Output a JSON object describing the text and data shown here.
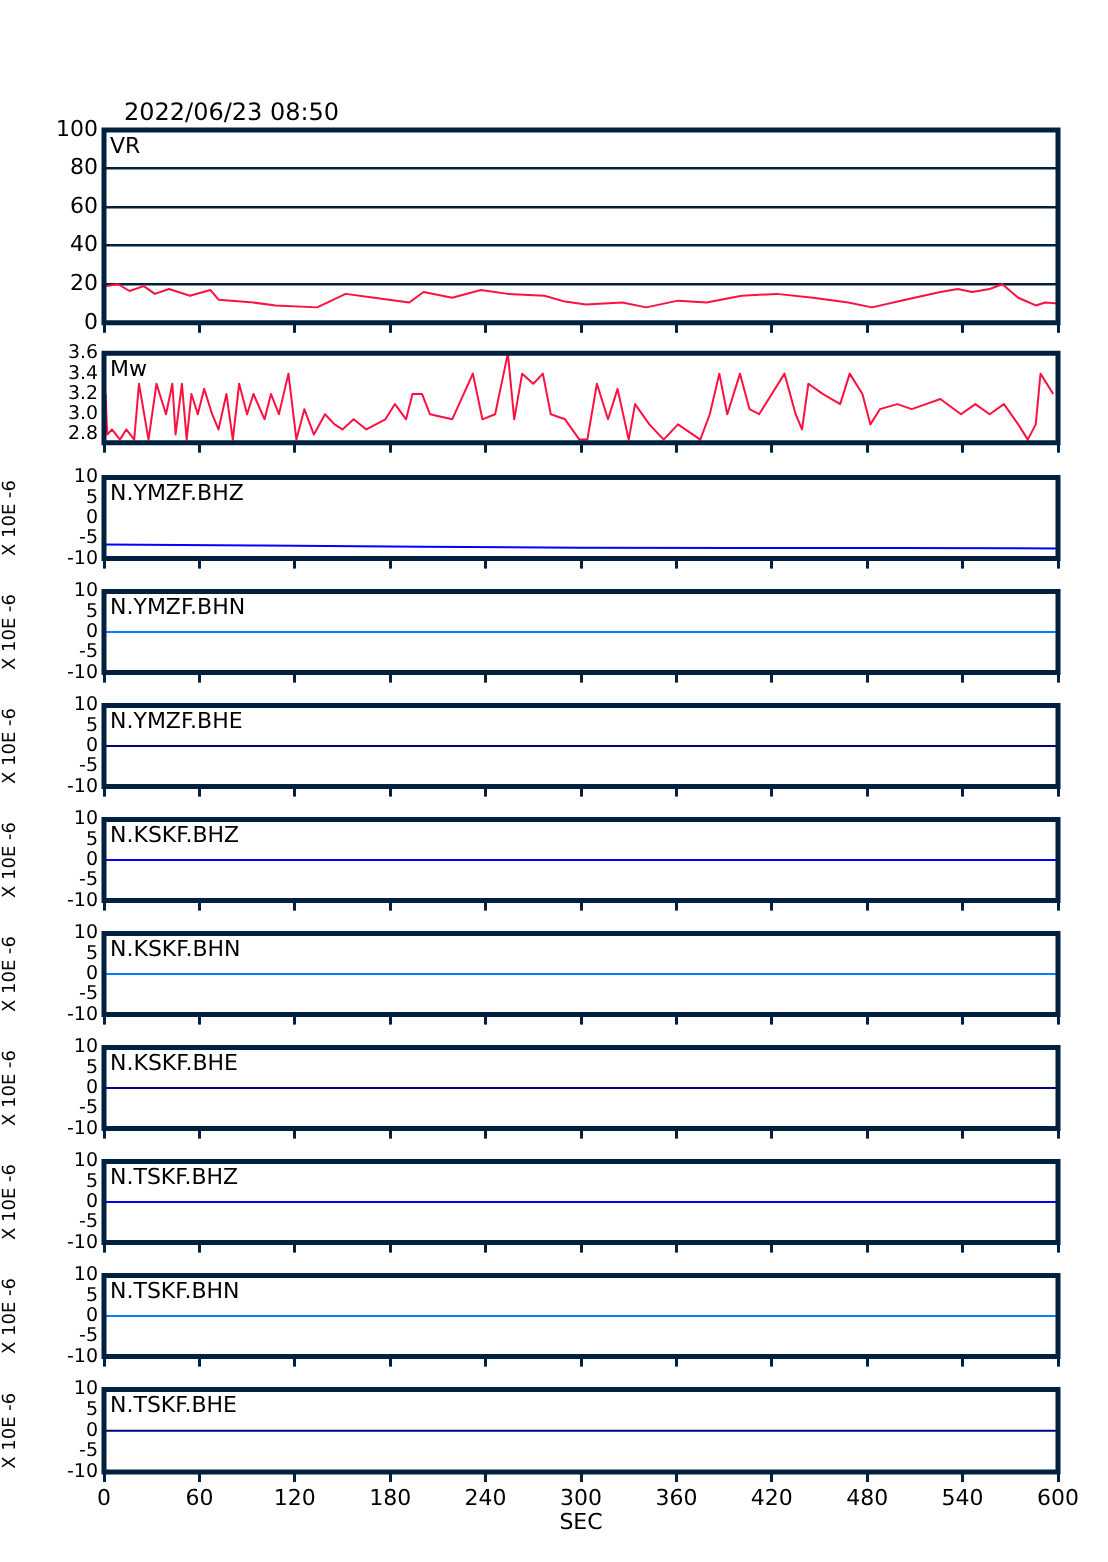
{
  "chart_data": [
    {
      "type": "line",
      "title": "VR",
      "annotations": [
        "2022/06/23 08:50"
      ],
      "x": [
        0,
        9,
        16,
        25,
        32,
        41,
        54,
        67,
        72,
        94,
        108,
        134,
        152,
        170,
        192,
        201,
        219,
        237,
        254,
        277,
        290,
        303,
        326,
        341,
        361,
        379,
        401,
        423,
        446,
        468,
        483,
        504,
        526,
        537,
        546,
        557,
        565,
        575,
        586,
        592,
        600
      ],
      "series": [
        {
          "color": "#ff1040",
          "values": [
            19,
            20,
            16.5,
            19,
            15,
            17.5,
            14,
            17,
            12,
            10.5,
            9,
            8,
            15,
            13,
            10.5,
            16,
            13,
            17,
            15,
            14,
            11,
            9.5,
            10.5,
            8,
            11.5,
            10.5,
            14,
            15,
            13,
            10.5,
            8,
            12,
            16,
            17.5,
            16,
            17.5,
            20,
            13,
            9,
            10.5,
            10
          ]
        }
      ],
      "xlim": [
        0,
        600
      ],
      "xticks": [
        0,
        60,
        120,
        180,
        240,
        300,
        360,
        420,
        480,
        540,
        600
      ],
      "ylim": [
        0,
        100
      ],
      "yticks": [
        0,
        20,
        40,
        60,
        80,
        100
      ],
      "grid": "y",
      "tick_labels": "y"
    },
    {
      "type": "line",
      "title": "Mw",
      "x": [
        1,
        2,
        5,
        10,
        14,
        19,
        22,
        28,
        33,
        39,
        43,
        45,
        49,
        52,
        55,
        59,
        63,
        68,
        72,
        77,
        81,
        85,
        90,
        94,
        101,
        105,
        110,
        116,
        121,
        126,
        132,
        139,
        145,
        150,
        157,
        165,
        177,
        183,
        190,
        194,
        200,
        205,
        219,
        232,
        238,
        246,
        254,
        258,
        263,
        270,
        276,
        281,
        290,
        299,
        304,
        310,
        317,
        323,
        330,
        334,
        343,
        352,
        361,
        375,
        381,
        387,
        392,
        400,
        406,
        412,
        428,
        435,
        439,
        443,
        452,
        463,
        469,
        477,
        482,
        488,
        499,
        508,
        517,
        526,
        539,
        548,
        557,
        566,
        575,
        581,
        586,
        589,
        597
      ],
      "series": [
        {
          "color": "#ff1040",
          "values": [
            3.2,
            2.8,
            2.85,
            2.75,
            2.85,
            2.75,
            3.3,
            2.75,
            3.3,
            3.0,
            3.3,
            2.8,
            3.3,
            2.75,
            3.2,
            3.0,
            3.25,
            3.0,
            2.85,
            3.2,
            2.75,
            3.3,
            3.0,
            3.2,
            2.95,
            3.2,
            3.0,
            3.4,
            2.75,
            3.05,
            2.8,
            3.0,
            2.9,
            2.85,
            2.95,
            2.85,
            2.95,
            3.1,
            2.95,
            3.2,
            3.2,
            3.0,
            2.95,
            3.4,
            2.95,
            3.0,
            3.6,
            2.95,
            3.4,
            3.3,
            3.4,
            3.0,
            2.95,
            2.75,
            2.75,
            3.3,
            2.95,
            3.25,
            2.75,
            3.1,
            2.9,
            2.75,
            2.9,
            2.75,
            3.0,
            3.4,
            3.0,
            3.4,
            3.05,
            3.0,
            3.4,
            3.0,
            2.85,
            3.3,
            3.2,
            3.1,
            3.4,
            3.2,
            2.9,
            3.05,
            3.1,
            3.05,
            3.1,
            3.15,
            3.0,
            3.1,
            3.0,
            3.1,
            2.9,
            2.75,
            2.9,
            3.4,
            3.2
          ]
        }
      ],
      "xlim": [
        0,
        600
      ],
      "xticks": [
        0,
        60,
        120,
        180,
        240,
        300,
        360,
        420,
        480,
        540,
        600
      ],
      "ylim": [
        2.72,
        3.6
      ],
      "yticks": [
        2.8,
        {
          "value": 3,
          "label": "3.0"
        },
        3.2,
        3.4,
        3.6
      ],
      "tick_labels": "y"
    },
    {
      "type": "line",
      "title": "N.YMZF.BHZ",
      "ylabel": "X 10E -6",
      "x": [
        0,
        100,
        200,
        300,
        400,
        500,
        600
      ],
      "series": [
        {
          "color": "#0000ff",
          "values": [
            -6.5,
            -6.8,
            -7.1,
            -7.3,
            -7.4,
            -7.4,
            -7.5
          ]
        }
      ],
      "xlim": [
        0,
        600
      ],
      "xticks": [
        0,
        60,
        120,
        180,
        240,
        300,
        360,
        420,
        480,
        540,
        600
      ],
      "ylim": [
        -10,
        10
      ],
      "yticks": [
        -10,
        -5,
        0,
        5,
        10
      ],
      "tick_labels": "y"
    },
    {
      "type": "line",
      "title": "N.YMZF.BHN",
      "ylabel": "X 10E -6",
      "x": [
        0,
        600
      ],
      "series": [
        {
          "color": "#0080ff",
          "values": [
            0,
            0
          ]
        }
      ],
      "xlim": [
        0,
        600
      ],
      "xticks": [
        0,
        60,
        120,
        180,
        240,
        300,
        360,
        420,
        480,
        540,
        600
      ],
      "ylim": [
        -10,
        10
      ],
      "yticks": [
        -10,
        -5,
        0,
        5,
        10
      ],
      "tick_labels": "y"
    },
    {
      "type": "line",
      "title": "N.YMZF.BHE",
      "ylabel": "X 10E -6",
      "x": [
        0,
        600
      ],
      "series": [
        {
          "color": "#000080",
          "values": [
            0,
            0
          ]
        }
      ],
      "xlim": [
        0,
        600
      ],
      "xticks": [
        0,
        60,
        120,
        180,
        240,
        300,
        360,
        420,
        480,
        540,
        600
      ],
      "ylim": [
        -10,
        10
      ],
      "yticks": [
        -10,
        -5,
        0,
        5,
        10
      ],
      "tick_labels": "y"
    },
    {
      "type": "line",
      "title": "N.KSKF.BHZ",
      "ylabel": "X 10E -6",
      "x": [
        0,
        600
      ],
      "series": [
        {
          "color": "#0000ff",
          "values": [
            0,
            0
          ]
        }
      ],
      "xlim": [
        0,
        600
      ],
      "xticks": [
        0,
        60,
        120,
        180,
        240,
        300,
        360,
        420,
        480,
        540,
        600
      ],
      "ylim": [
        -10,
        10
      ],
      "yticks": [
        -10,
        -5,
        0,
        5,
        10
      ],
      "tick_labels": "y"
    },
    {
      "type": "line",
      "title": "N.KSKF.BHN",
      "ylabel": "X 10E -6",
      "x": [
        0,
        600
      ],
      "series": [
        {
          "color": "#0080ff",
          "values": [
            0,
            0
          ]
        }
      ],
      "xlim": [
        0,
        600
      ],
      "xticks": [
        0,
        60,
        120,
        180,
        240,
        300,
        360,
        420,
        480,
        540,
        600
      ],
      "ylim": [
        -10,
        10
      ],
      "yticks": [
        -10,
        -5,
        0,
        5,
        10
      ],
      "tick_labels": "y"
    },
    {
      "type": "line",
      "title": "N.KSKF.BHE",
      "ylabel": "X 10E -6",
      "x": [
        0,
        600
      ],
      "series": [
        {
          "color": "#000080",
          "values": [
            0,
            0
          ]
        }
      ],
      "xlim": [
        0,
        600
      ],
      "xticks": [
        0,
        60,
        120,
        180,
        240,
        300,
        360,
        420,
        480,
        540,
        600
      ],
      "ylim": [
        -10,
        10
      ],
      "yticks": [
        -10,
        -5,
        0,
        5,
        10
      ],
      "tick_labels": "y"
    },
    {
      "type": "line",
      "title": "N.TSKF.BHZ",
      "ylabel": "X 10E -6",
      "x": [
        0,
        600
      ],
      "series": [
        {
          "color": "#0000ff",
          "values": [
            0,
            0
          ]
        }
      ],
      "xlim": [
        0,
        600
      ],
      "xticks": [
        0,
        60,
        120,
        180,
        240,
        300,
        360,
        420,
        480,
        540,
        600
      ],
      "ylim": [
        -10,
        10
      ],
      "yticks": [
        -10,
        -5,
        0,
        5,
        10
      ],
      "tick_labels": "y"
    },
    {
      "type": "line",
      "title": "N.TSKF.BHN",
      "ylabel": "X 10E -6",
      "x": [
        0,
        600
      ],
      "series": [
        {
          "color": "#0080ff",
          "values": [
            0,
            0
          ]
        }
      ],
      "xlim": [
        0,
        600
      ],
      "xticks": [
        0,
        60,
        120,
        180,
        240,
        300,
        360,
        420,
        480,
        540,
        600
      ],
      "ylim": [
        -10,
        10
      ],
      "yticks": [
        -10,
        -5,
        0,
        5,
        10
      ],
      "tick_labels": "y"
    },
    {
      "type": "line",
      "title": "N.TSKF.BHE",
      "ylabel": "X 10E -6",
      "xlabel": "SEC",
      "x": [
        0,
        600
      ],
      "series": [
        {
          "color": "#000080",
          "values": [
            0,
            0
          ]
        }
      ],
      "xlim": [
        0,
        600
      ],
      "xticks": [
        0,
        60,
        120,
        180,
        240,
        300,
        360,
        420,
        480,
        540,
        600
      ],
      "ylim": [
        -10,
        10
      ],
      "yticks": [
        -10,
        -5,
        0,
        5,
        10
      ]
    }
  ]
}
